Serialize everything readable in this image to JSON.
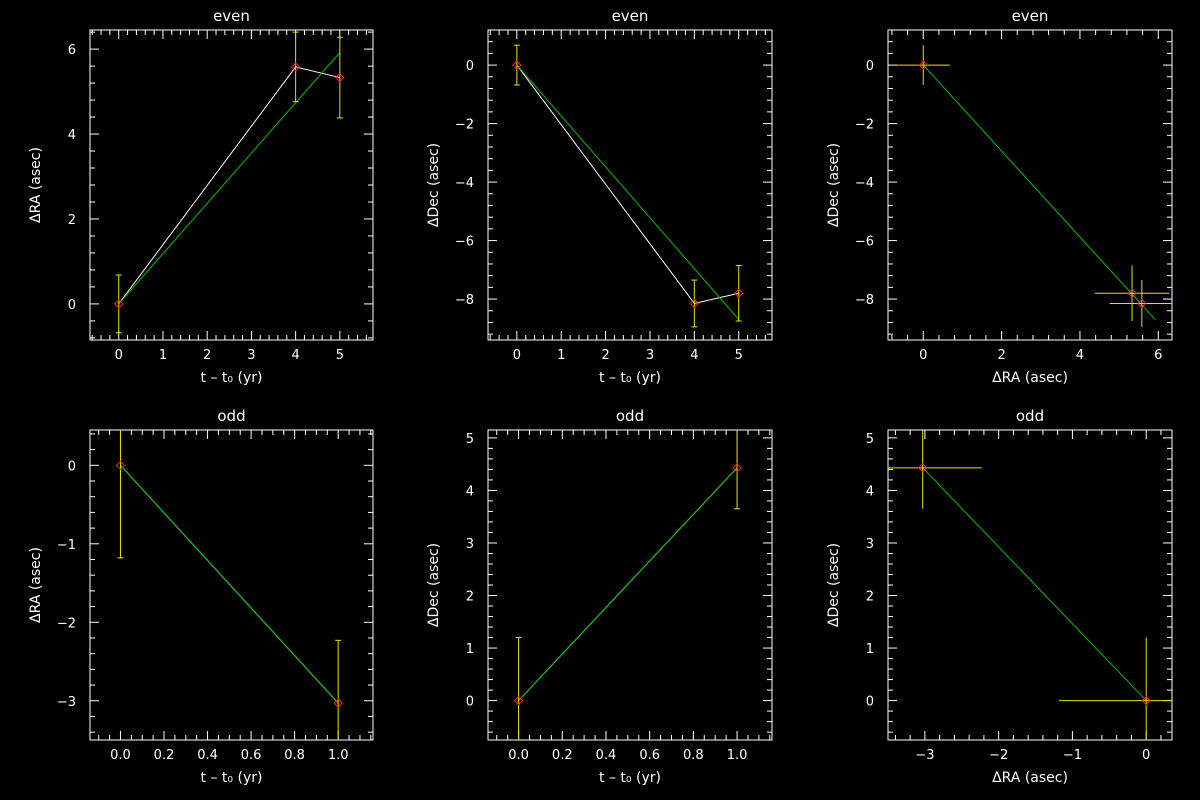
{
  "colors": {
    "background": "#000000",
    "axes": "#ffffff",
    "data_line": "#ffffff",
    "fit_line": "#00c000",
    "error_bar": "#e8e000",
    "marker": "#ff2020"
  },
  "chart_data": [
    {
      "type": "scatter",
      "title": "even",
      "xlabel": "t – t₀ (yr)",
      "ylabel": "ΔRA (asec)",
      "xlim": [
        -0.65,
        5.75
      ],
      "ylim": [
        -0.85,
        6.45
      ],
      "xticks": [
        0,
        1,
        2,
        3,
        4,
        5
      ],
      "xtick_labels": [
        "0",
        "1",
        "2",
        "3",
        "4",
        "5"
      ],
      "yticks": [
        0,
        2,
        4,
        6
      ],
      "ytick_labels": [
        "0",
        "2",
        "4",
        "6"
      ],
      "points": [
        {
          "x": 0,
          "y": 0,
          "yerr": 0.68
        },
        {
          "x": 4,
          "y": 5.58,
          "yerr": 0.82
        },
        {
          "x": 5,
          "y": 5.33,
          "yerr": 0.95
        }
      ],
      "connect_points": true,
      "fit_line": [
        [
          0,
          0
        ],
        [
          5,
          5.92
        ]
      ]
    },
    {
      "type": "scatter",
      "title": "even",
      "xlabel": "t – t₀ (yr)",
      "ylabel": "ΔDec (asec)",
      "xlim": [
        -0.65,
        5.75
      ],
      "ylim": [
        -9.4,
        1.2
      ],
      "xticks": [
        0,
        1,
        2,
        3,
        4,
        5
      ],
      "xtick_labels": [
        "0",
        "1",
        "2",
        "3",
        "4",
        "5"
      ],
      "yticks": [
        -8,
        -6,
        -4,
        -2,
        0
      ],
      "ytick_labels": [
        "−8",
        "−6",
        "−4",
        "−2",
        "0"
      ],
      "points": [
        {
          "x": 0,
          "y": 0,
          "yerr": 0.68
        },
        {
          "x": 4,
          "y": -8.15,
          "yerr": 0.8
        },
        {
          "x": 5,
          "y": -7.8,
          "yerr": 0.95
        }
      ],
      "connect_points": true,
      "fit_line": [
        [
          0,
          0
        ],
        [
          5,
          -8.7
        ]
      ]
    },
    {
      "type": "scatter",
      "title": "even",
      "xlabel": "ΔRA (asec)",
      "ylabel": "ΔDec (asec)",
      "xlim": [
        -0.9,
        6.35
      ],
      "ylim": [
        -9.4,
        1.2
      ],
      "xticks": [
        0,
        2,
        4,
        6
      ],
      "xtick_labels": [
        "0",
        "2",
        "4",
        "6"
      ],
      "yticks": [
        -8,
        -6,
        -4,
        -2,
        0
      ],
      "ytick_labels": [
        "−8",
        "−6",
        "−4",
        "−2",
        "0"
      ],
      "points": [
        {
          "x": 0,
          "y": 0,
          "xerr": 0.68,
          "yerr": 0.68
        },
        {
          "x": 5.33,
          "y": -7.8,
          "xerr": 0.95,
          "yerr": 0.95
        },
        {
          "x": 5.58,
          "y": -8.15,
          "xerr": 0.82,
          "yerr": 0.8
        }
      ],
      "connect_points": false,
      "fit_line": [
        [
          0,
          0
        ],
        [
          5.92,
          -8.7
        ]
      ]
    },
    {
      "type": "scatter",
      "title": "odd",
      "xlabel": "t – t₀ (yr)",
      "ylabel": "ΔRA (asec)",
      "xlim": [
        -0.14,
        1.16
      ],
      "ylim": [
        -3.5,
        0.45
      ],
      "xticks": [
        0,
        0.2,
        0.4,
        0.6,
        0.8,
        1.0
      ],
      "xtick_labels": [
        "0.0",
        "0.2",
        "0.4",
        "0.6",
        "0.8",
        "1.0"
      ],
      "yticks": [
        -3,
        -2,
        -1,
        0
      ],
      "ytick_labels": [
        "−3",
        "−2",
        "−1",
        "0"
      ],
      "points": [
        {
          "x": 0,
          "y": 0,
          "yerr": 1.18
        },
        {
          "x": 1,
          "y": -3.03,
          "yerr": 0.8
        }
      ],
      "connect_points": true,
      "fit_line": [
        [
          0,
          0
        ],
        [
          1,
          -3.03
        ]
      ]
    },
    {
      "type": "scatter",
      "title": "odd",
      "xlabel": "t – t₀ (yr)",
      "ylabel": "ΔDec (asec)",
      "xlim": [
        -0.14,
        1.16
      ],
      "ylim": [
        -0.75,
        5.15
      ],
      "xticks": [
        0,
        0.2,
        0.4,
        0.6,
        0.8,
        1.0
      ],
      "xtick_labels": [
        "0.0",
        "0.2",
        "0.4",
        "0.6",
        "0.8",
        "1.0"
      ],
      "yticks": [
        0,
        1,
        2,
        3,
        4,
        5
      ],
      "ytick_labels": [
        "0",
        "1",
        "2",
        "3",
        "4",
        "5"
      ],
      "points": [
        {
          "x": 0,
          "y": 0,
          "yerr": 1.2
        },
        {
          "x": 1,
          "y": 4.43,
          "yerr": 0.78
        }
      ],
      "connect_points": true,
      "fit_line": [
        [
          0,
          0
        ],
        [
          1,
          4.43
        ]
      ]
    },
    {
      "type": "scatter",
      "title": "odd",
      "xlabel": "ΔRA (asec)",
      "ylabel": "ΔDec (asec)",
      "xlim": [
        -3.5,
        0.35
      ],
      "ylim": [
        -0.75,
        5.15
      ],
      "xticks": [
        -3,
        -2,
        -1,
        0
      ],
      "xtick_labels": [
        "−3",
        "−2",
        "−1",
        "0"
      ],
      "yticks": [
        0,
        1,
        2,
        3,
        4,
        5
      ],
      "ytick_labels": [
        "0",
        "1",
        "2",
        "3",
        "4",
        "5"
      ],
      "points": [
        {
          "x": -3.03,
          "y": 4.43,
          "xerr": 0.8,
          "yerr": 0.78
        },
        {
          "x": 0,
          "y": 0,
          "xerr": 1.18,
          "yerr": 1.2
        }
      ],
      "connect_points": false,
      "fit_line": [
        [
          -3.03,
          4.43
        ],
        [
          0,
          0
        ]
      ]
    }
  ]
}
